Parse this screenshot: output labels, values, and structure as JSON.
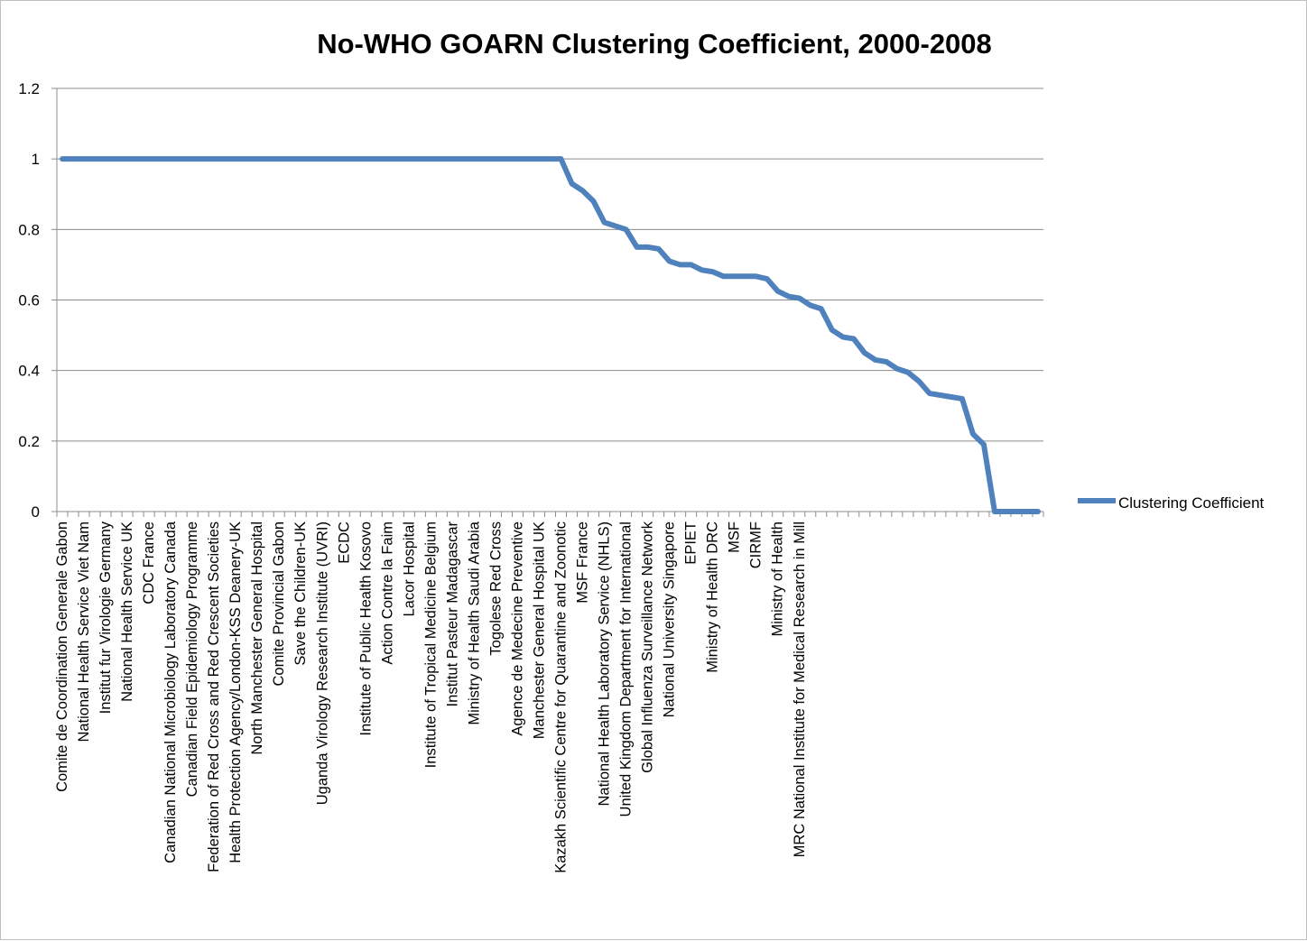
{
  "chart_data": {
    "type": "line",
    "title": "No-WHO GOARN Clustering Coefficient, 2000-2008",
    "xlabel": "",
    "ylabel": "",
    "ylim": [
      0,
      1.2
    ],
    "y_ticks": [
      "0",
      "0.2",
      "0.4",
      "0.6",
      "0.8",
      "1",
      "1.2"
    ],
    "grid": true,
    "legend_position": "right",
    "colors": {
      "series": "#4f81bd",
      "grid": "#8c8c8c",
      "axis": "#8c8c8c"
    },
    "categories_labeled": [
      "Comite de Coordination Generale Gabon",
      "National Health Service Viet Nam",
      "Institut fur Virologie Germany",
      "National Health Service UK",
      "CDC France",
      "Canadian National Microbiology Laboratory Canada",
      "Canadian Field Epidemiology Programme",
      "Federation of Red Cross and Red Crescent Societies",
      "Health Protection Agency/London-KSS Deanery-UK",
      "North Manchester General Hospital",
      "Comite Provincial Gabon",
      "Save the Children-UK",
      "Uganda Virology Research Institute (UVRI)",
      "ECDC",
      "Institute of Public Health Kosovo",
      "Action Contre la Faim",
      "Lacor Hospital",
      "Institute of Tropical Medicine Belgium",
      "Institut Pasteur Madagascar",
      "Ministry of Health Saudi Arabia",
      "Togolese Red Cross",
      "Agence de Medecine Preventive",
      "Manchester General Hospital UK",
      "Kazakh Scientific Centre for Quarantine and Zoonotic",
      "MSF France",
      "National Health Laboratory Service (NHLS)",
      "United Kingdom Department for International",
      "Global Influenza Surveillance Network",
      "National University Singapore",
      "EPIET",
      "Ministry of Health DRC",
      "MSF",
      "CIRMF",
      "Ministry of Health",
      "MRC National Institute for Medical Research in Mill"
    ],
    "series": [
      {
        "name": "Clustering Coefficient",
        "values": [
          1,
          1,
          1,
          1,
          1,
          1,
          1,
          1,
          1,
          1,
          1,
          1,
          1,
          1,
          1,
          1,
          1,
          1,
          1,
          1,
          1,
          1,
          1,
          1,
          1,
          1,
          1,
          1,
          1,
          1,
          1,
          1,
          1,
          1,
          1,
          1,
          1,
          1,
          1,
          1,
          1,
          1,
          1,
          1,
          1,
          1,
          1,
          0.93,
          0.91,
          0.88,
          0.82,
          0.81,
          0.8,
          0.75,
          0.75,
          0.745,
          0.71,
          0.7,
          0.7,
          0.685,
          0.68,
          0.667,
          0.667,
          0.667,
          0.667,
          0.66,
          0.625,
          0.61,
          0.605,
          0.585,
          0.575,
          0.515,
          0.495,
          0.49,
          0.45,
          0.43,
          0.425,
          0.405,
          0.395,
          0.37,
          0.335,
          0.33,
          0.325,
          0.32,
          0.22,
          0.19,
          0,
          0,
          0,
          0,
          0
        ]
      }
    ]
  }
}
